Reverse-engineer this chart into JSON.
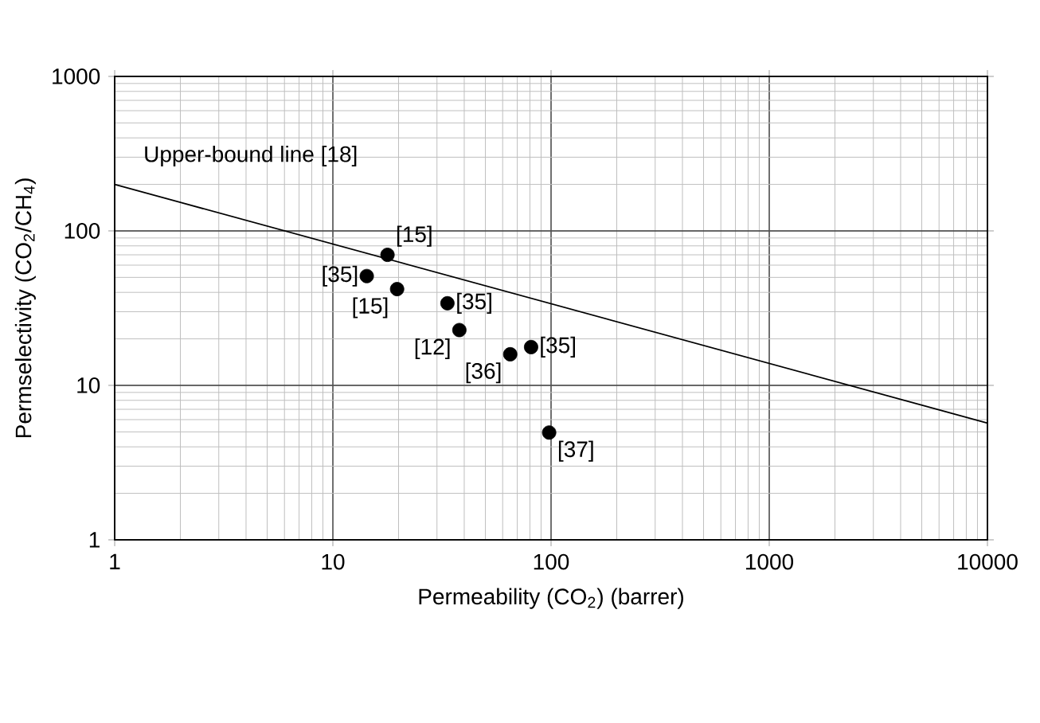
{
  "chart_data": {
    "type": "scatter",
    "xlabel": "Permeability (CO$_{2}$) (barrer)",
    "ylabel": "Permselectivity (CO$_{2}$/CH$_{4}$)",
    "log": "xy",
    "grid": true,
    "xlim": [
      1,
      10000
    ],
    "ylim": [
      1,
      1000
    ],
    "xticks": [
      1,
      10,
      100,
      1000,
      10000
    ],
    "yticks": [
      1,
      10,
      100,
      1000
    ],
    "series": [
      {
        "marker": "circle",
        "color": "#000000",
        "x": [
          17.8,
          14.3,
          19.7,
          33.5,
          38,
          65,
          81,
          98
        ],
        "values": [
          70,
          51,
          42,
          34,
          22.8,
          15.9,
          17.7,
          4.95
        ]
      },
      {
        "type": "line",
        "marker": "none",
        "line_style": "solid",
        "color": "#000000",
        "x": [
          1,
          10000
        ],
        "values": [
          200,
          5.7
        ]
      }
    ],
    "annotations": [
      {
        "text": "[15]",
        "x": 17.8,
        "y": 70
      },
      {
        "text": "[35]",
        "x": 14.3,
        "y": 51
      },
      {
        "text": "[15]",
        "x": 19.7,
        "y": 42
      },
      {
        "text": "[35]",
        "x": 33.5,
        "y": 34
      },
      {
        "text": "[12]",
        "x": 38,
        "y": 22.8
      },
      {
        "text": "[36]",
        "x": 65,
        "y": 15.9
      },
      {
        "text": "[35]",
        "x": 81,
        "y": 17.7
      },
      {
        "text": "[37]",
        "x": 98,
        "y": 4.95
      },
      "Upper-bound line [18]"
    ]
  }
}
